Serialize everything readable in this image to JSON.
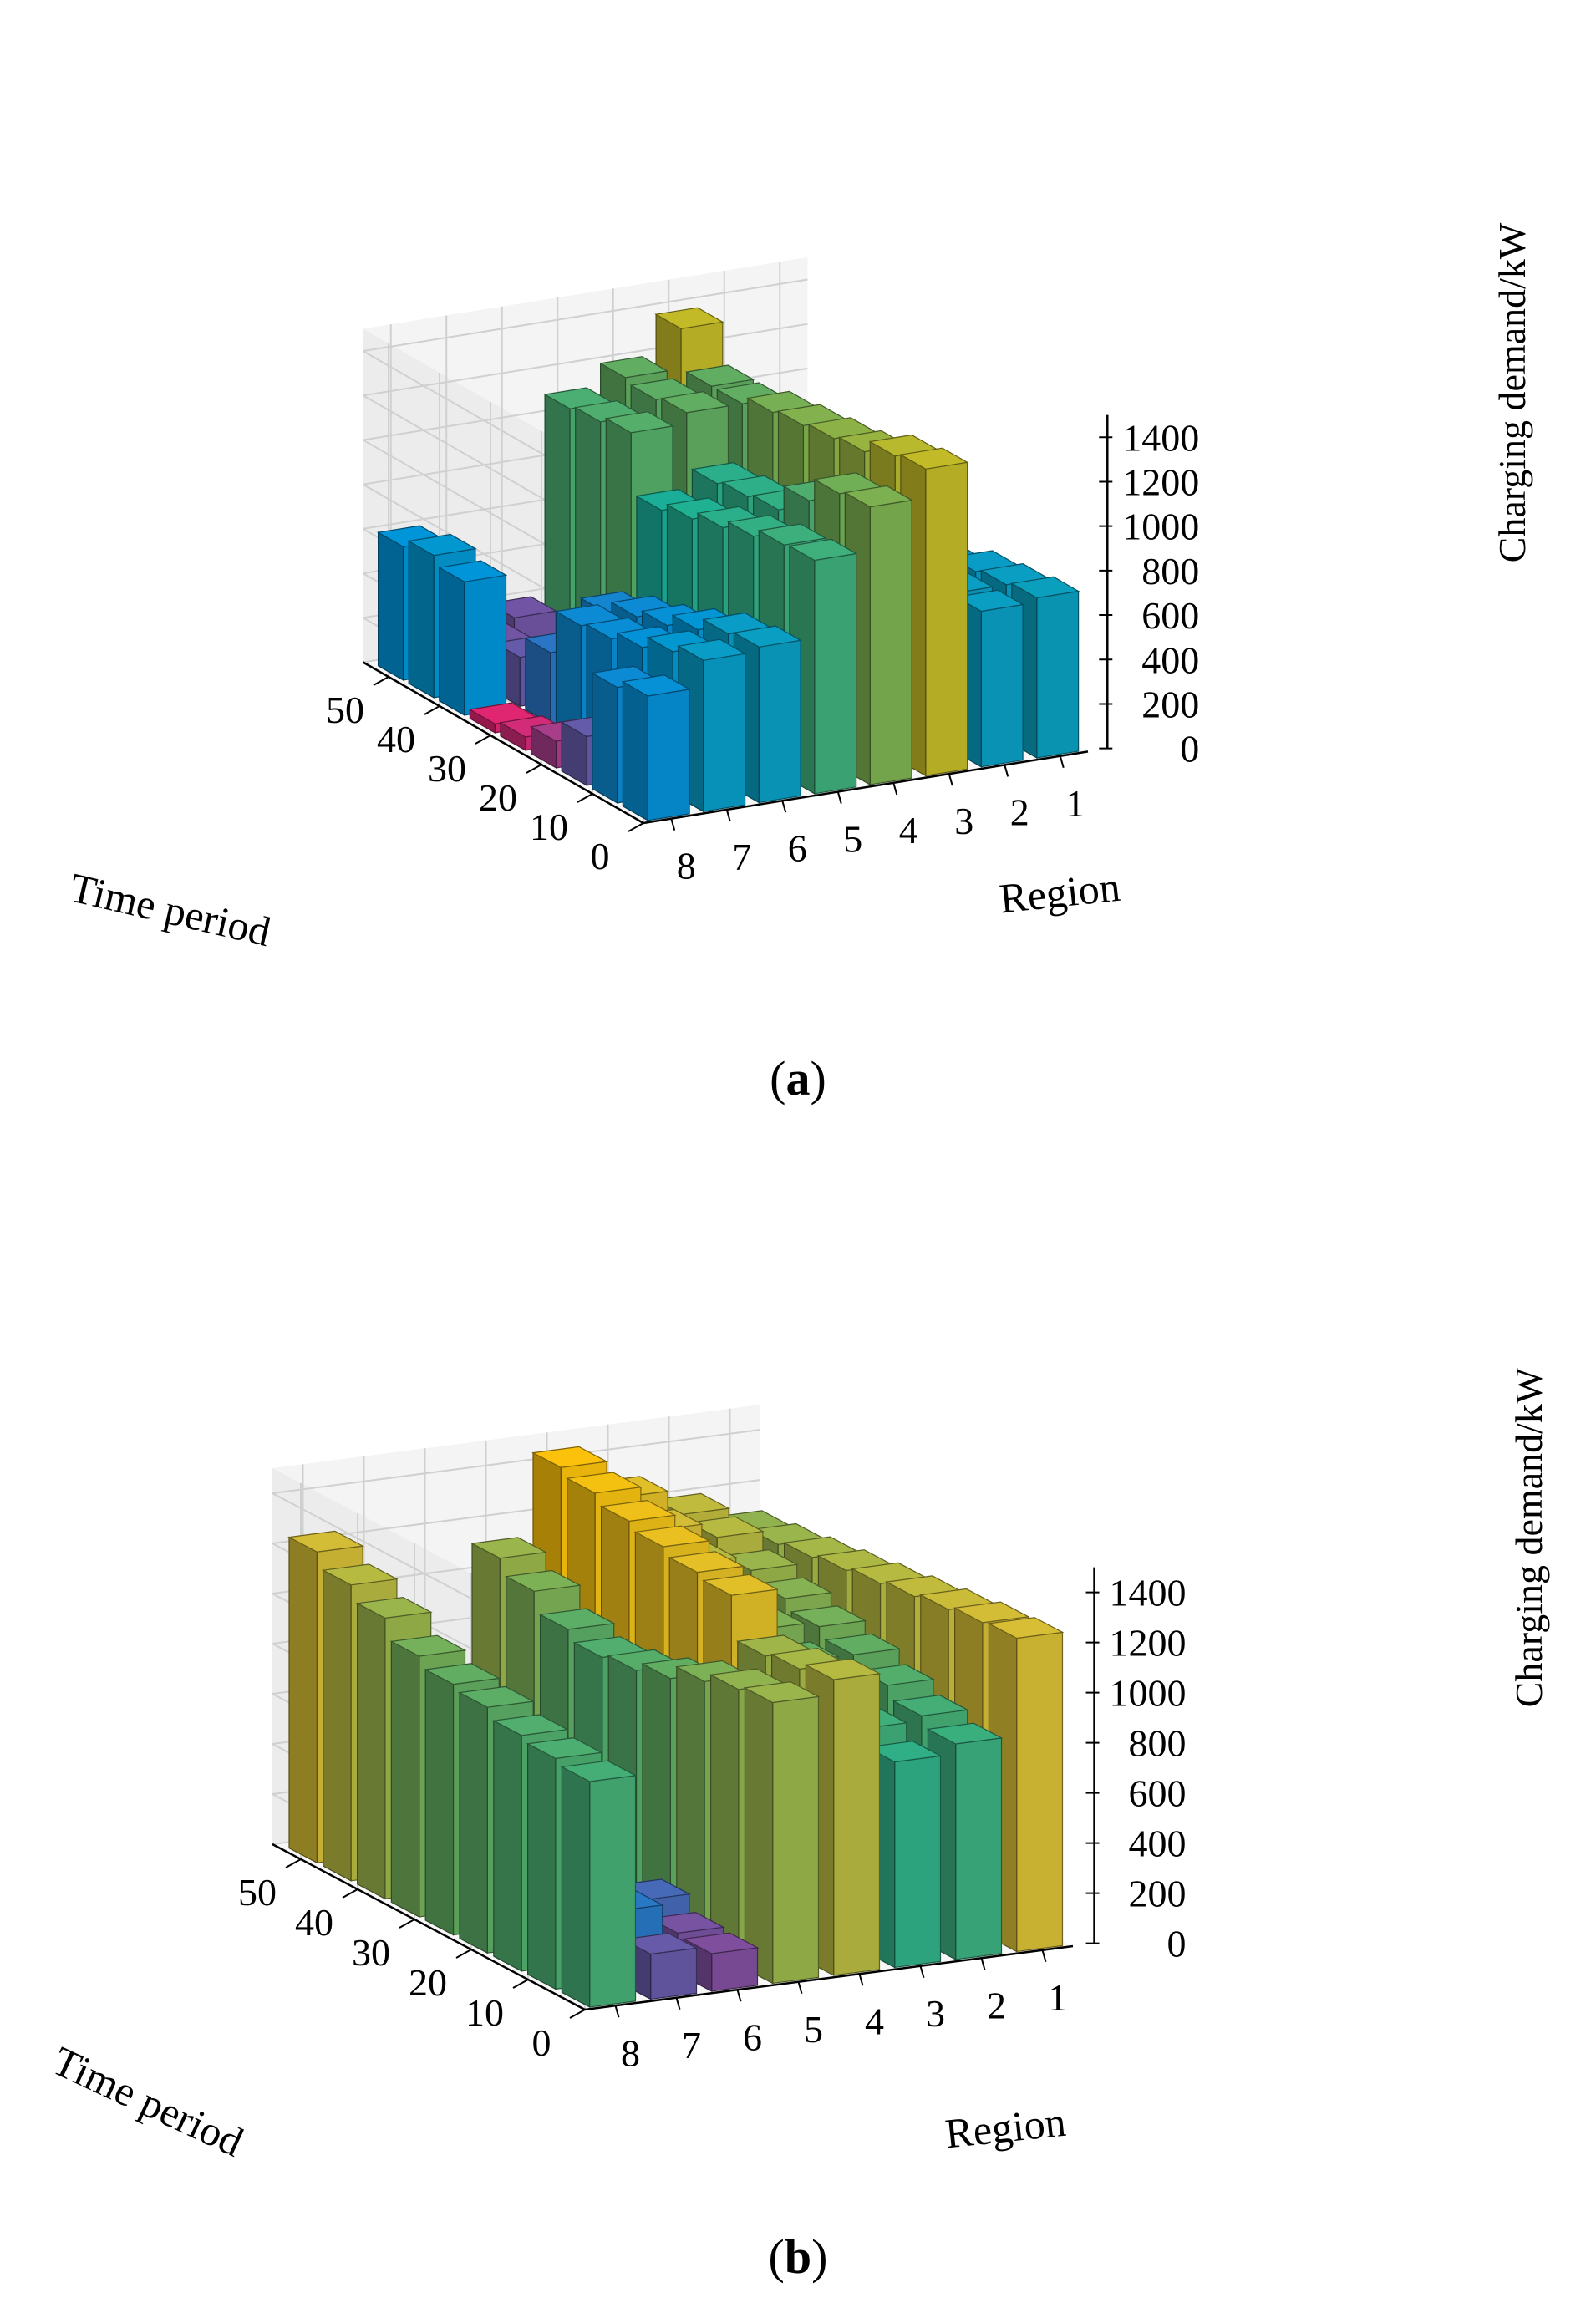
{
  "figure": {
    "panels": [
      {
        "caption_open": "(",
        "caption_label": "a",
        "caption_close": ")"
      },
      {
        "caption_open": "(",
        "caption_label": "b",
        "caption_close": ")"
      }
    ]
  },
  "chart_data": [
    {
      "type": "bar3d",
      "title": "",
      "xlabel": "Region",
      "ylabel": "Time period",
      "zlabel": "Charging demand/kW",
      "regions": [
        1,
        2,
        3,
        4,
        5,
        6,
        7,
        8
      ],
      "region_ticks": [
        "1",
        "2",
        "3",
        "4",
        "5",
        "6",
        "7",
        "8"
      ],
      "time_ticks": [
        "0",
        "10",
        "20",
        "30",
        "40",
        "50"
      ],
      "z_ticks": [
        "0",
        "200",
        "400",
        "600",
        "800",
        "1000",
        "1200",
        "1400"
      ],
      "zlim": [
        0,
        1500
      ],
      "time_range": [
        0,
        55
      ],
      "grid": true,
      "colormap": [
        "#e8175d",
        "#2a6bb5",
        "#0089c9",
        "#1aa38a",
        "#5aa05a",
        "#f0b400"
      ],
      "series": [
        {
          "name": "",
          "region": 1,
          "values": [
            0,
            0,
            0,
            0,
            0,
            0,
            0,
            0,
            0,
            0,
            0,
            0,
            0,
            0,
            0,
            0,
            0,
            0,
            0,
            0,
            0,
            0,
            0,
            0,
            0,
            0,
            0,
            0,
            0,
            0,
            0,
            0,
            0,
            0,
            0,
            0,
            0,
            0,
            0,
            0,
            0,
            0,
            0,
            0,
            0,
            0,
            0,
            0,
            0,
            0,
            0,
            0,
            0,
            0,
            0
          ]
        },
        {
          "name": "",
          "region": 2,
          "values": [
            0,
            0,
            0,
            0,
            0,
            0,
            0,
            0,
            0,
            0,
            0,
            0,
            0,
            0,
            0,
            0,
            0,
            0,
            0,
            0,
            0,
            0,
            0,
            0,
            0,
            0,
            0,
            0,
            0,
            0,
            0,
            0,
            0,
            0,
            0,
            0,
            0,
            0,
            0,
            0,
            0,
            0,
            0,
            0,
            0,
            0,
            0,
            0,
            0,
            0,
            0,
            0,
            0,
            0,
            0
          ]
        },
        {
          "name": "",
          "region": 3,
          "values": [
            0,
            0,
            0,
            0,
            0,
            0,
            0,
            0,
            0,
            0,
            0,
            0,
            0,
            0,
            0,
            0,
            0,
            0,
            0,
            0,
            0,
            0,
            0,
            0,
            0,
            0,
            0,
            0,
            0,
            0,
            0,
            0,
            0,
            0,
            0,
            0,
            0,
            0,
            0,
            0,
            0,
            0,
            0,
            0,
            0,
            0,
            0,
            0,
            0,
            0,
            0,
            0,
            0,
            0,
            0
          ]
        }
      ],
      "surface": {
        "t_starts": [
          0,
          6,
          12,
          18,
          24,
          30,
          36,
          42,
          48
        ],
        "t_width": 6,
        "rows": [
          [
            720,
            700,
            1380,
            1250,
            1050,
            700,
            680,
            560
          ],
          [
            700,
            700,
            1360,
            1230,
            1040,
            680,
            640,
            520
          ],
          [
            680,
            660,
            1300,
            1120,
            1000,
            620,
            580,
            220
          ],
          [
            620,
            600,
            1280,
            1000,
            960,
            560,
            540,
            120
          ],
          [
            560,
            540,
            1260,
            980,
            920,
            520,
            520,
            60
          ],
          [
            500,
            460,
            1240,
            960,
            880,
            460,
            320,
            40
          ],
          [
            0,
            0,
            1200,
            1200,
            1150,
            0,
            220,
            600
          ],
          [
            0,
            0,
            1200,
            1180,
            1120,
            0,
            200,
            640
          ],
          [
            0,
            0,
            1380,
            1200,
            1100,
            200,
            180,
            600
          ]
        ]
      }
    },
    {
      "type": "bar3d",
      "title": "",
      "xlabel": "Region",
      "ylabel": "Time period",
      "zlabel": "Charging demand/kW",
      "regions": [
        1,
        2,
        3,
        4,
        5,
        6,
        7,
        8
      ],
      "region_ticks": [
        "1",
        "2",
        "3",
        "4",
        "5",
        "6",
        "7",
        "8"
      ],
      "time_ticks": [
        "0",
        "10",
        "20",
        "30",
        "40",
        "50"
      ],
      "z_ticks": [
        "0",
        "200",
        "400",
        "600",
        "800",
        "1000",
        "1200",
        "1400"
      ],
      "zlim": [
        0,
        1500
      ],
      "time_range": [
        0,
        55
      ],
      "grid": true,
      "colormap": [
        "#e8175d",
        "#2a6bb5",
        "#0089c9",
        "#1aa38a",
        "#5aa05a",
        "#c8b030",
        "#f0b400"
      ],
      "surface": {
        "t_starts": [
          0,
          6,
          12,
          18,
          24,
          30,
          36,
          42,
          48
        ],
        "t_width": 6,
        "rows": [
          [
            1250,
            860,
            820,
            1180,
            1120,
            150,
            180,
            900
          ],
          [
            1240,
            900,
            880,
            1150,
            1100,
            160,
            280,
            920
          ],
          [
            1220,
            950,
            940,
            1130,
            1060,
            220,
            420,
            940
          ],
          [
            1200,
            1000,
            1000,
            1300,
            1000,
            140,
            380,
            980
          ],
          [
            1180,
            1040,
            1060,
            1320,
            960,
            180,
            200,
            1000
          ],
          [
            1160,
            1080,
            1120,
            1350,
            940,
            120,
            160,
            1040
          ],
          [
            1140,
            1120,
            1180,
            1380,
            980,
            100,
            180,
            1120
          ],
          [
            1120,
            1180,
            1240,
            1420,
            1060,
            80,
            160,
            1180
          ],
          [
            1100,
            1200,
            1300,
            1450,
            1120,
            60,
            140,
            1240
          ]
        ]
      }
    }
  ]
}
